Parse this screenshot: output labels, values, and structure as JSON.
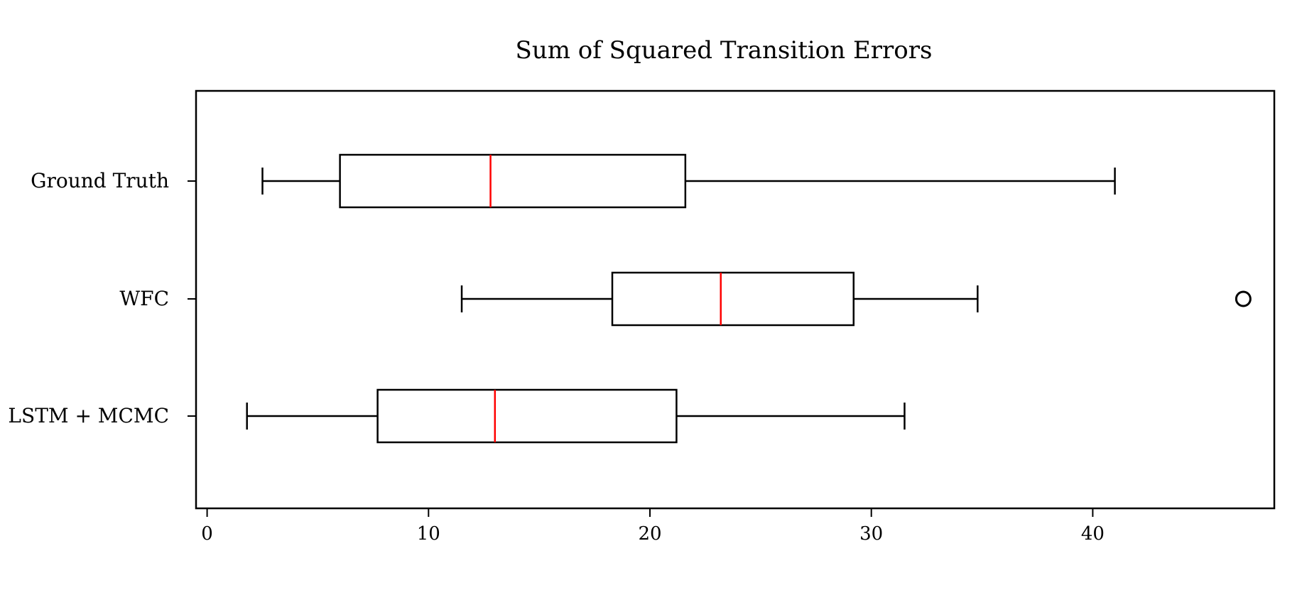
{
  "chart_data": {
    "type": "boxplot",
    "orientation": "horizontal",
    "title": "Sum of Squared Transition Errors",
    "xlabel": "",
    "ylabel": "",
    "xlim": [
      -0.5,
      48.2
    ],
    "xticks": [
      0,
      10,
      20,
      30,
      40
    ],
    "grid": false,
    "categories": [
      "Ground Truth",
      "WFC",
      "LSTM + MCMC"
    ],
    "series": [
      {
        "name": "Ground Truth",
        "whisker_low": 2.5,
        "q1": 6.0,
        "median": 12.8,
        "q3": 21.6,
        "whisker_high": 41.0,
        "outliers": []
      },
      {
        "name": "WFC",
        "whisker_low": 11.5,
        "q1": 18.3,
        "median": 23.2,
        "q3": 29.2,
        "whisker_high": 34.8,
        "outliers": [
          46.8
        ]
      },
      {
        "name": "LSTM + MCMC",
        "whisker_low": 1.8,
        "q1": 7.7,
        "median": 13.0,
        "q3": 21.2,
        "whisker_high": 31.5,
        "outliers": []
      }
    ],
    "colors": {
      "box": "#000000",
      "median": "#ff0000",
      "outlier_edge": "#000000"
    }
  }
}
